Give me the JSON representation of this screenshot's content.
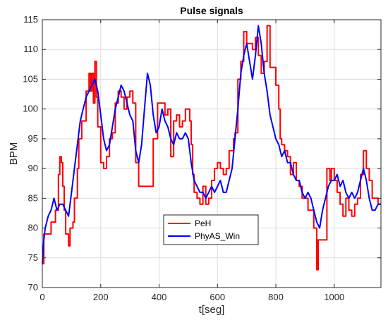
{
  "chart_data": {
    "type": "line",
    "title": "Pulse signals",
    "xlabel": "t[seg]",
    "ylabel": "BPM",
    "xlim": [
      0,
      1160
    ],
    "ylim": [
      70,
      115
    ],
    "x_ticks": [
      0,
      200,
      400,
      600,
      800,
      1000
    ],
    "y_ticks": [
      70,
      75,
      80,
      85,
      90,
      95,
      100,
      105,
      110,
      115
    ],
    "x_tick_labels": [
      "0",
      "200",
      "400",
      "600",
      "800",
      "1000"
    ],
    "y_tick_labels": [
      "70",
      "75",
      "80",
      "85",
      "90",
      "95",
      "100",
      "105",
      "110",
      "115"
    ],
    "grid": true,
    "legend_position": "lower-center",
    "series": [
      {
        "name": "PeH",
        "color": "#ff0000",
        "step": true,
        "points": [
          [
            0,
            74
          ],
          [
            5,
            79
          ],
          [
            30,
            81
          ],
          [
            45,
            83
          ],
          [
            55,
            89
          ],
          [
            60,
            92
          ],
          [
            65,
            91
          ],
          [
            70,
            87
          ],
          [
            75,
            83
          ],
          [
            80,
            79
          ],
          [
            90,
            77
          ],
          [
            95,
            80
          ],
          [
            105,
            81
          ],
          [
            110,
            85
          ],
          [
            120,
            90
          ],
          [
            125,
            95
          ],
          [
            135,
            98
          ],
          [
            150,
            103
          ],
          [
            160,
            106
          ],
          [
            165,
            103
          ],
          [
            170,
            106
          ],
          [
            175,
            101
          ],
          [
            180,
            108
          ],
          [
            185,
            102
          ],
          [
            190,
            97
          ],
          [
            200,
            91
          ],
          [
            210,
            90
          ],
          [
            220,
            92
          ],
          [
            230,
            95
          ],
          [
            240,
            96
          ],
          [
            250,
            101
          ],
          [
            260,
            103
          ],
          [
            270,
            102
          ],
          [
            280,
            100
          ],
          [
            290,
            102
          ],
          [
            300,
            103
          ],
          [
            310,
            101
          ],
          [
            320,
            91
          ],
          [
            330,
            87
          ],
          [
            350,
            87
          ],
          [
            370,
            87
          ],
          [
            380,
            95
          ],
          [
            395,
            101
          ],
          [
            410,
            101
          ],
          [
            420,
            99
          ],
          [
            430,
            100
          ],
          [
            440,
            92
          ],
          [
            450,
            98
          ],
          [
            460,
            99
          ],
          [
            470,
            97
          ],
          [
            480,
            98
          ],
          [
            490,
            100
          ],
          [
            500,
            100
          ],
          [
            505,
            98
          ],
          [
            510,
            94
          ],
          [
            515,
            89
          ],
          [
            520,
            86
          ],
          [
            530,
            85
          ],
          [
            540,
            84
          ],
          [
            550,
            87
          ],
          [
            560,
            84
          ],
          [
            570,
            85
          ],
          [
            580,
            88
          ],
          [
            590,
            90
          ],
          [
            600,
            91
          ],
          [
            610,
            90
          ],
          [
            620,
            89
          ],
          [
            630,
            90
          ],
          [
            640,
            93
          ],
          [
            650,
            93
          ],
          [
            655,
            95
          ],
          [
            660,
            96
          ],
          [
            670,
            105
          ],
          [
            680,
            108
          ],
          [
            690,
            113
          ],
          [
            700,
            111
          ],
          [
            710,
            111
          ],
          [
            720,
            110
          ],
          [
            730,
            112
          ],
          [
            740,
            109
          ],
          [
            750,
            106
          ],
          [
            760,
            108
          ],
          [
            770,
            114
          ],
          [
            780,
            107
          ],
          [
            790,
            107
          ],
          [
            800,
            104
          ],
          [
            810,
            100
          ],
          [
            815,
            95
          ],
          [
            820,
            94
          ],
          [
            830,
            93
          ],
          [
            840,
            92
          ],
          [
            850,
            89
          ],
          [
            860,
            91
          ],
          [
            870,
            88
          ],
          [
            880,
            87
          ],
          [
            890,
            85
          ],
          [
            900,
            85
          ],
          [
            910,
            83
          ],
          [
            920,
            83
          ],
          [
            930,
            80
          ],
          [
            940,
            73
          ],
          [
            945,
            78
          ],
          [
            955,
            78
          ],
          [
            970,
            78
          ],
          [
            975,
            90
          ],
          [
            985,
            88
          ],
          [
            990,
            90
          ],
          [
            1000,
            88
          ],
          [
            1010,
            86
          ],
          [
            1020,
            84
          ],
          [
            1030,
            82
          ],
          [
            1040,
            85
          ],
          [
            1050,
            83
          ],
          [
            1060,
            82
          ],
          [
            1070,
            84
          ],
          [
            1080,
            85
          ],
          [
            1090,
            89
          ],
          [
            1100,
            93
          ],
          [
            1110,
            90
          ],
          [
            1120,
            88
          ],
          [
            1130,
            85
          ],
          [
            1140,
            85
          ],
          [
            1150,
            84
          ],
          [
            1160,
            84
          ]
        ]
      },
      {
        "name": "PhyAS_Win",
        "color": "#0000ff",
        "step": false,
        "points": [
          [
            0,
            74
          ],
          [
            5,
            78
          ],
          [
            10,
            80
          ],
          [
            20,
            82
          ],
          [
            30,
            83
          ],
          [
            40,
            85
          ],
          [
            50,
            83
          ],
          [
            60,
            84
          ],
          [
            70,
            84
          ],
          [
            80,
            83
          ],
          [
            90,
            82
          ],
          [
            100,
            86
          ],
          [
            110,
            90
          ],
          [
            120,
            94
          ],
          [
            130,
            98
          ],
          [
            140,
            100
          ],
          [
            150,
            102
          ],
          [
            160,
            103
          ],
          [
            170,
            104
          ],
          [
            180,
            105
          ],
          [
            190,
            103
          ],
          [
            200,
            99
          ],
          [
            210,
            95
          ],
          [
            220,
            93
          ],
          [
            230,
            94
          ],
          [
            240,
            97
          ],
          [
            250,
            100
          ],
          [
            260,
            102
          ],
          [
            270,
            104
          ],
          [
            280,
            103
          ],
          [
            290,
            101
          ],
          [
            300,
            99
          ],
          [
            310,
            98
          ],
          [
            320,
            93
          ],
          [
            330,
            91
          ],
          [
            340,
            94
          ],
          [
            350,
            100
          ],
          [
            360,
            106
          ],
          [
            370,
            104
          ],
          [
            380,
            99
          ],
          [
            390,
            96
          ],
          [
            400,
            97
          ],
          [
            410,
            100
          ],
          [
            420,
            98
          ],
          [
            430,
            97
          ],
          [
            440,
            95
          ],
          [
            450,
            94
          ],
          [
            460,
            96
          ],
          [
            470,
            95
          ],
          [
            480,
            95
          ],
          [
            490,
            96
          ],
          [
            500,
            95
          ],
          [
            510,
            91
          ],
          [
            520,
            88
          ],
          [
            530,
            87
          ],
          [
            540,
            86
          ],
          [
            550,
            86
          ],
          [
            560,
            85
          ],
          [
            570,
            86
          ],
          [
            580,
            87
          ],
          [
            590,
            86
          ],
          [
            600,
            87
          ],
          [
            610,
            88
          ],
          [
            620,
            86
          ],
          [
            630,
            86
          ],
          [
            640,
            88
          ],
          [
            650,
            90
          ],
          [
            660,
            95
          ],
          [
            670,
            100
          ],
          [
            680,
            106
          ],
          [
            690,
            109
          ],
          [
            700,
            111
          ],
          [
            710,
            108
          ],
          [
            720,
            105
          ],
          [
            730,
            109
          ],
          [
            740,
            114
          ],
          [
            750,
            111
          ],
          [
            760,
            106
          ],
          [
            770,
            103
          ],
          [
            780,
            99
          ],
          [
            790,
            97
          ],
          [
            800,
            95
          ],
          [
            810,
            94
          ],
          [
            820,
            92
          ],
          [
            830,
            93
          ],
          [
            840,
            91
          ],
          [
            850,
            91
          ],
          [
            860,
            89
          ],
          [
            870,
            88
          ],
          [
            880,
            88
          ],
          [
            890,
            86
          ],
          [
            900,
            85
          ],
          [
            910,
            86
          ],
          [
            920,
            85
          ],
          [
            930,
            83
          ],
          [
            940,
            81
          ],
          [
            950,
            80
          ],
          [
            960,
            83
          ],
          [
            970,
            85
          ],
          [
            980,
            87
          ],
          [
            990,
            88
          ],
          [
            1000,
            88
          ],
          [
            1010,
            89
          ],
          [
            1020,
            87
          ],
          [
            1030,
            88
          ],
          [
            1040,
            86
          ],
          [
            1050,
            85
          ],
          [
            1060,
            86
          ],
          [
            1070,
            85
          ],
          [
            1080,
            86
          ],
          [
            1090,
            88
          ],
          [
            1100,
            90
          ],
          [
            1110,
            88
          ],
          [
            1120,
            85
          ],
          [
            1130,
            83
          ],
          [
            1140,
            83
          ],
          [
            1150,
            84
          ],
          [
            1160,
            84
          ]
        ]
      }
    ]
  }
}
